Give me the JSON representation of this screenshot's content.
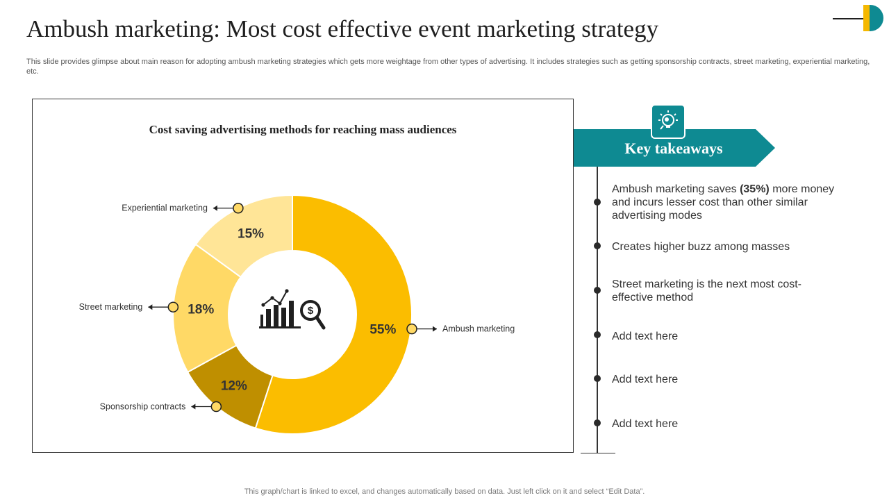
{
  "page": {
    "title": "Ambush marketing: Most cost effective event marketing strategy",
    "subtitle": "This slide provides glimpse about main reason for adopting ambush marketing strategies which gets more weightage from other types of advertising. It includes strategies such as getting sponsorship contracts, street marketing, experiential marketing, etc.",
    "footer": "This graph/chart is linked to excel,  and changes automatically based on data. Just left click on it and select “Edit Data”."
  },
  "colors": {
    "teal": "#0e8a92",
    "ambush": "#fbbd00",
    "experiential": "#ffe597",
    "street": "#ffd966",
    "sponsorship": "#bf8f00"
  },
  "chart_data": {
    "type": "pie",
    "style": "donut",
    "title": "Cost saving advertising methods for reaching mass audiences",
    "center_icon": "chart-analytics-dollar-search-icon",
    "slices": [
      {
        "label": "Ambush marketing",
        "value": 55,
        "display": "55%"
      },
      {
        "label": "Sponsorship contracts",
        "value": 12,
        "display": "12%"
      },
      {
        "label": "Street marketing",
        "value": 18,
        "display": "18%"
      },
      {
        "label": "Experiential marketing",
        "value": 15,
        "display": "15%"
      }
    ],
    "start_angle": "12 o'clock",
    "direction": "clockwise",
    "legend": "callout labels"
  },
  "takeaways": {
    "header": "Key takeaways",
    "header_icon": "lightbulb-search-icon",
    "item1": {
      "before": "Ambush marketing saves ",
      "bold": "(35%)",
      "after": " more money and incurs lesser cost than other similar advertising modes"
    },
    "item2": "Creates higher buzz among masses",
    "item3": "Street marketing is the next most cost-effective method",
    "item4": "Add text here",
    "item5": "Add text here",
    "item6": "Add text here"
  }
}
